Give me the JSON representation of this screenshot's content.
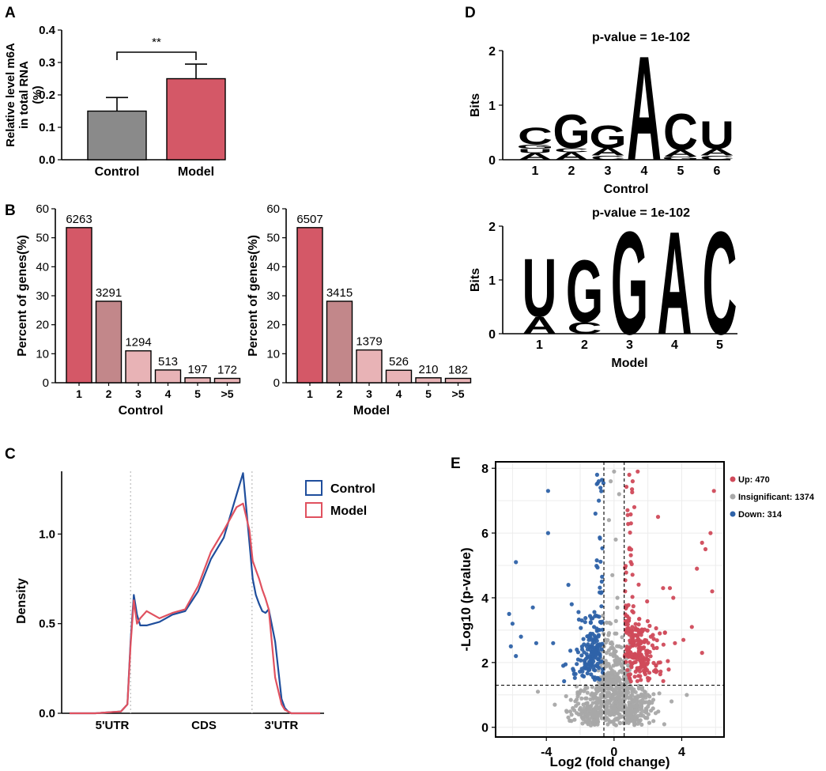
{
  "panels": {
    "A": {
      "letter": "A",
      "chart_data": {
        "type": "bar",
        "ylabel": "Relative level m6A in total RNA (%)",
        "ylabel_lines": [
          "Relative level m6A",
          "in total RNA",
          "(%)"
        ],
        "ylim": [
          0,
          0.4
        ],
        "yticks": [
          "0.0",
          "0.1",
          "0.2",
          "0.3",
          "0.4"
        ],
        "categories": [
          "Control",
          "Model"
        ],
        "values": [
          0.15,
          0.25
        ],
        "errors": [
          0.042,
          0.045
        ],
        "colors": [
          "#8a8a8a",
          "#d45867"
        ],
        "significance": "**"
      }
    },
    "B": {
      "letter": "B",
      "chart_data": [
        {
          "type": "bar",
          "xlabel": "Control",
          "ylabel": "Percent of genes(%)",
          "ylim": [
            0,
            60
          ],
          "yticks": [
            "0",
            "10",
            "20",
            "30",
            "40",
            "50",
            "60"
          ],
          "categories": [
            "1",
            "2",
            "3",
            "4",
            "5",
            ">5"
          ],
          "values": [
            53.5,
            28.1,
            11.0,
            4.4,
            1.7,
            1.5
          ],
          "labels": [
            "6263",
            "3291",
            "1294",
            "513",
            "197",
            "172"
          ]
        },
        {
          "type": "bar",
          "xlabel": "Model",
          "ylabel": "Percent of genes(%)",
          "ylim": [
            0,
            60
          ],
          "yticks": [
            "0",
            "10",
            "20",
            "30",
            "40",
            "50",
            "60"
          ],
          "categories": [
            "1",
            "2",
            "3",
            "4",
            "5",
            ">5"
          ],
          "values": [
            53.5,
            28.1,
            11.3,
            4.3,
            1.7,
            1.5
          ],
          "labels": [
            "6507",
            "3415",
            "1379",
            "526",
            "210",
            "182"
          ]
        }
      ],
      "bar_colors": [
        "#d45867",
        "#c2878a",
        "#e8b3b6",
        "#e8b3b6",
        "#e8b3b6",
        "#e8b3b6"
      ]
    },
    "C": {
      "letter": "C",
      "chart_data": {
        "type": "line",
        "ylabel": "Density",
        "ylim": [
          0,
          1.35
        ],
        "yticks": [
          "0.0",
          "0.5",
          "1.0"
        ],
        "x_region_labels": [
          "5'UTR",
          "CDS",
          "3'UTR"
        ],
        "x": [
          0,
          0.4,
          0.8,
          0.9,
          0.95,
          1.0,
          1.05,
          1.1,
          1.2,
          1.4,
          1.6,
          1.8,
          2.0,
          2.2,
          2.4,
          2.6,
          2.7,
          2.8,
          2.85,
          2.9,
          2.95,
          3.0,
          3.05,
          3.1,
          3.2,
          3.3,
          3.35,
          3.4,
          3.45,
          3.55,
          3.7,
          3.9
        ],
        "series": [
          {
            "name": "Control",
            "color": "#1f4e9c",
            "values": [
              0.0,
              0.0,
              0.01,
              0.05,
              0.4,
              0.66,
              0.55,
              0.49,
              0.49,
              0.51,
              0.55,
              0.57,
              0.68,
              0.86,
              0.98,
              1.22,
              1.34,
              0.95,
              0.75,
              0.66,
              0.61,
              0.57,
              0.56,
              0.58,
              0.4,
              0.08,
              0.03,
              0.01,
              0.0,
              0.0,
              0.0,
              0.0
            ]
          },
          {
            "name": "Model",
            "color": "#e0515f",
            "values": [
              0.0,
              0.0,
              0.01,
              0.05,
              0.38,
              0.63,
              0.5,
              0.53,
              0.57,
              0.53,
              0.56,
              0.58,
              0.71,
              0.9,
              1.02,
              1.15,
              1.17,
              1.02,
              0.85,
              0.8,
              0.75,
              0.69,
              0.64,
              0.58,
              0.2,
              0.05,
              0.02,
              0.01,
              0.0,
              0.0,
              0.0,
              0.0
            ]
          }
        ],
        "legend": [
          "Control",
          "Model"
        ]
      }
    },
    "D": {
      "letter": "D",
      "logos": [
        {
          "pvalue": "p-value = 1e-102",
          "ylabel": "Bits",
          "yticks": [
            "0",
            "1",
            "2"
          ],
          "xlabel": "Control",
          "positions": [
            "1",
            "2",
            "3",
            "4",
            "5",
            "6"
          ],
          "stacks": [
            [
              [
                "A",
                0.12
              ],
              [
                "U",
                0.08
              ],
              [
                "G",
                0.08
              ],
              [
                "C",
                0.32
              ]
            ],
            [
              [
                "A",
                0.14
              ],
              [
                "C",
                0.08
              ],
              [
                "G",
                0.62
              ]
            ],
            [
              [
                "C",
                0.08
              ],
              [
                "A",
                0.14
              ],
              [
                "G",
                0.42
              ]
            ],
            [
              [
                "A",
                1.95
              ]
            ],
            [
              [
                "G",
                0.06
              ],
              [
                "A",
                0.12
              ],
              [
                "C",
                0.68
              ]
            ],
            [
              [
                "C",
                0.08
              ],
              [
                "A",
                0.12
              ],
              [
                "U",
                0.52
              ]
            ]
          ]
        },
        {
          "pvalue": "p-value = 1e-102",
          "ylabel": "Bits",
          "yticks": [
            "0",
            "1",
            "2"
          ],
          "xlabel": "Model",
          "positions": [
            "1",
            "2",
            "3",
            "4",
            "5"
          ],
          "stacks": [
            [
              [
                "A",
                0.32
              ],
              [
                "U",
                1.1
              ]
            ],
            [
              [
                "C",
                0.22
              ],
              [
                "G",
                1.18
              ]
            ],
            [
              [
                "G",
                1.95
              ]
            ],
            [
              [
                "A",
                1.95
              ]
            ],
            [
              [
                "C",
                1.95
              ]
            ]
          ]
        }
      ],
      "base_colors": {
        "A": "#1e9a3b",
        "C": "#1f4e9c",
        "G": "#f0a91e",
        "U": "#d0222f"
      }
    },
    "E": {
      "letter": "E",
      "chart_data": {
        "type": "scatter",
        "xlabel": "Log2 (fold change)",
        "ylabel": "-Log10 (p-value)",
        "xlim": [
          -7,
          6.5
        ],
        "ylim": [
          -0.3,
          8.2
        ],
        "xticks": [
          "-4",
          "0",
          "4"
        ],
        "yticks": [
          "0",
          "2",
          "4",
          "6",
          "8"
        ],
        "thresholds": {
          "x": [
            -0.6,
            0.6
          ],
          "y": 1.3
        },
        "legend": [
          {
            "label": "Up: 470",
            "color": "#d04a5a",
            "count": 470
          },
          {
            "label": "Insignificant: 1374",
            "color": "#a8a8a8",
            "count": 1374
          },
          {
            "label": "Down: 314",
            "color": "#2e62a8",
            "count": 314
          }
        ],
        "sample_points": {
          "up": [
            [
              5.9,
              7.3
            ],
            [
              5.7,
              6.0
            ],
            [
              2.6,
              6.5
            ],
            [
              5.2,
              5.7
            ],
            [
              5.4,
              5.5
            ],
            [
              4.9,
              4.9
            ],
            [
              5.8,
              4.2
            ],
            [
              3.5,
              4.0
            ],
            [
              2.9,
              4.3
            ],
            [
              3.3,
              4.3
            ],
            [
              1.4,
              7.9
            ],
            [
              0.9,
              7.8
            ],
            [
              1.1,
              7.6
            ],
            [
              1.2,
              6.8
            ],
            [
              1.0,
              6.3
            ],
            [
              4.6,
              3.1
            ],
            [
              5.2,
              2.3
            ],
            [
              4.1,
              2.7
            ],
            [
              3.6,
              2.6
            ],
            [
              2.7,
              2.9
            ]
          ],
          "down": [
            [
              -3.9,
              7.3
            ],
            [
              -3.9,
              6.0
            ],
            [
              -5.8,
              5.1
            ],
            [
              -2.7,
              4.4
            ],
            [
              -6.2,
              3.5
            ],
            [
              -6.0,
              3.2
            ],
            [
              -5.5,
              2.8
            ],
            [
              -6.1,
              2.5
            ],
            [
              -5.8,
              2.2
            ],
            [
              -4.8,
              3.7
            ],
            [
              -4.6,
              2.6
            ],
            [
              -3.6,
              2.6
            ],
            [
              -2.5,
              3.8
            ],
            [
              -1.0,
              7.8
            ],
            [
              -0.8,
              7.4
            ],
            [
              -0.9,
              7.0
            ],
            [
              -1.1,
              6.6
            ],
            [
              -1.9,
              3.3
            ],
            [
              -2.2,
              2.4
            ],
            [
              -3.0,
              1.9
            ]
          ],
          "gray": [
            [
              0.0,
              7.9
            ],
            [
              -0.2,
              7.6
            ],
            [
              0.3,
              7.2
            ],
            [
              -0.3,
              6.4
            ],
            [
              0.1,
              5.8
            ],
            [
              -0.1,
              4.7
            ],
            [
              0.2,
              4.0
            ],
            [
              -0.2,
              3.2
            ],
            [
              0.3,
              2.5
            ],
            [
              -0.3,
              1.9
            ],
            [
              0.1,
              1.4
            ],
            [
              -2.0,
              1.1
            ],
            [
              2.0,
              1.0
            ],
            [
              -3.5,
              0.7
            ],
            [
              3.4,
              0.8
            ],
            [
              -1.2,
              0.4
            ],
            [
              1.3,
              0.3
            ],
            [
              0.0,
              0.1
            ],
            [
              -4.5,
              1.1
            ],
            [
              4.3,
              1.0
            ]
          ]
        }
      }
    }
  }
}
